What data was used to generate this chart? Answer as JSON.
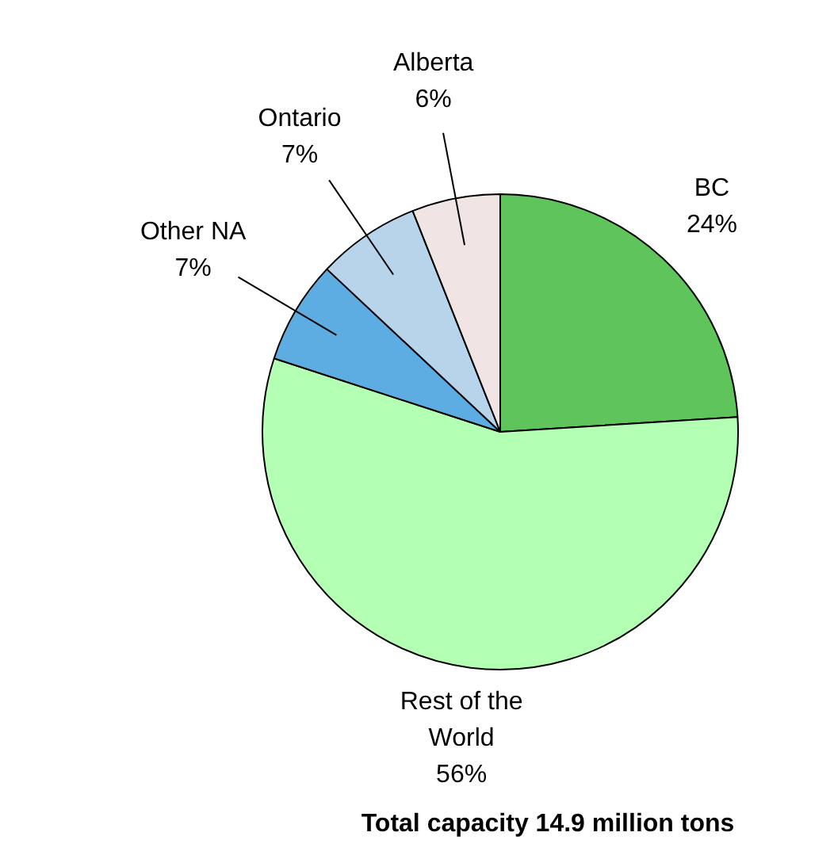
{
  "chart_data": {
    "type": "pie",
    "title": "Total capacity 14.9 million tons",
    "categories": [
      "BC",
      "Rest of the World",
      "Other NA",
      "Ontario",
      "Alberta"
    ],
    "values": [
      24,
      56,
      7,
      7,
      6
    ],
    "value_labels": [
      "24%",
      "56%",
      "7%",
      "7%",
      "6%"
    ],
    "colors": [
      "#60c45c",
      "#b3ffb3",
      "#5dade2",
      "#b8d4ea",
      "#f0e4e4"
    ]
  }
}
